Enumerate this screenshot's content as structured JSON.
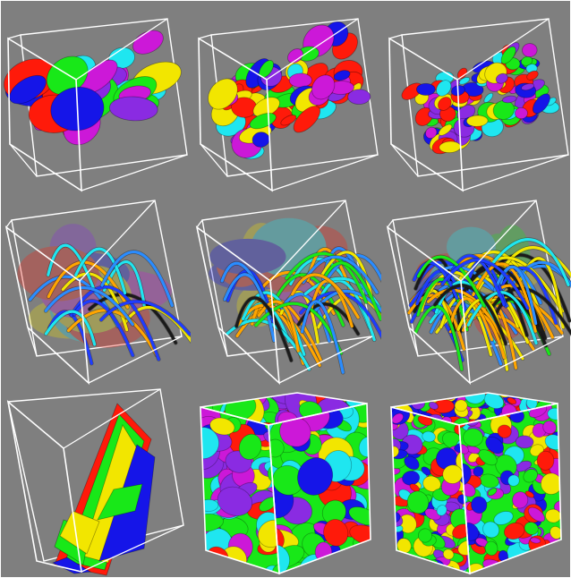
{
  "figure": {
    "background": "#7f7f7f",
    "frame_color": "#ffffff",
    "rows": [
      {
        "kind": "isosurface-blobs",
        "panels": [
          "coarse",
          "medium",
          "fine"
        ]
      },
      {
        "kind": "tube-streamlines",
        "panels": [
          "coarse",
          "medium",
          "fine"
        ]
      },
      {
        "kind": "solid-cube-grains",
        "panels": [
          "coarse",
          "medium",
          "fine"
        ]
      }
    ],
    "palette": {
      "red": "#ff1a0a",
      "blue": "#1515e8",
      "cyan": "#1fe6f0",
      "green": "#18e818",
      "yellow": "#f2e600",
      "magenta": "#cc18d8",
      "purple": "#8a2be2",
      "dark": "#1a1a1a"
    }
  }
}
